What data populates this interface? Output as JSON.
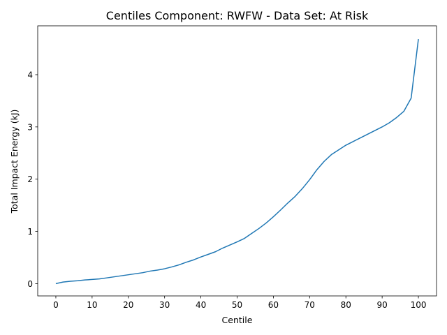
{
  "chart_data": {
    "type": "line",
    "title": "Centiles Component: RWFW - Data Set: At Risk",
    "xlabel": "Centile",
    "ylabel": "Total Impact Energy (kJ)",
    "xlim": [
      -5,
      105
    ],
    "ylim": [
      -0.235,
      4.935
    ],
    "xticks": [
      0,
      10,
      20,
      30,
      40,
      50,
      60,
      70,
      80,
      90,
      100
    ],
    "xtick_labels": [
      "0",
      "10",
      "20",
      "30",
      "40",
      "50",
      "60",
      "70",
      "80",
      "90",
      "100"
    ],
    "yticks": [
      0,
      1,
      2,
      3,
      4
    ],
    "ytick_labels": [
      "0",
      "1",
      "2",
      "3",
      "4"
    ],
    "grid": false,
    "legend": false,
    "series": [
      {
        "color": "#1f77b4",
        "x": [
          0,
          2,
          4,
          6,
          8,
          10,
          12,
          14,
          16,
          18,
          20,
          22,
          24,
          26,
          28,
          30,
          32,
          34,
          36,
          38,
          40,
          42,
          44,
          46,
          48,
          50,
          52,
          54,
          56,
          58,
          60,
          62,
          64,
          66,
          68,
          70,
          72,
          74,
          76,
          78,
          80,
          82,
          84,
          86,
          88,
          90,
          92,
          94,
          96,
          98,
          100
        ],
        "values": [
          0.0,
          0.03,
          0.045,
          0.055,
          0.07,
          0.08,
          0.09,
          0.11,
          0.13,
          0.15,
          0.17,
          0.19,
          0.21,
          0.24,
          0.26,
          0.285,
          0.32,
          0.36,
          0.41,
          0.455,
          0.51,
          0.56,
          0.61,
          0.68,
          0.74,
          0.8,
          0.865,
          0.96,
          1.055,
          1.16,
          1.28,
          1.41,
          1.545,
          1.67,
          1.82,
          1.99,
          2.18,
          2.34,
          2.47,
          2.56,
          2.65,
          2.72,
          2.79,
          2.86,
          2.93,
          3.0,
          3.08,
          3.18,
          3.3,
          3.55,
          4.68
        ]
      }
    ]
  }
}
